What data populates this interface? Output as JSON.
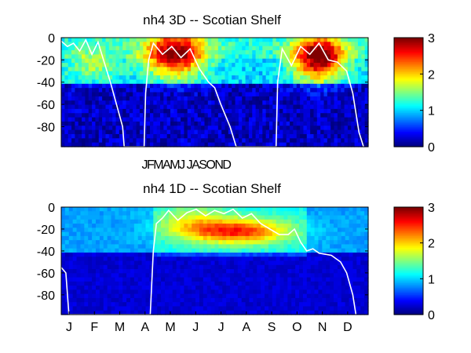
{
  "chart_data": [
    {
      "type": "heatmap",
      "title": "nh4 3D   -- Scotian Shelf",
      "ylim": [
        -98,
        0
      ],
      "y_ticks": [
        "0",
        "-20",
        "-40",
        "-60",
        "-80"
      ],
      "x_tick_labels": [
        "JFMAMJ JASOND"
      ],
      "colorbar": {
        "range": [
          0,
          3
        ],
        "ticks": [
          "0",
          "1",
          "2",
          "3"
        ],
        "colormap": "jet"
      },
      "overlay_line_color": "#ffffff",
      "overlay_depth_profile": [
        [
          0.0,
          -3
        ],
        [
          0.02,
          -8
        ],
        [
          0.04,
          -5
        ],
        [
          0.06,
          -12
        ],
        [
          0.08,
          -2
        ],
        [
          0.1,
          -15
        ],
        [
          0.12,
          -4
        ],
        [
          0.14,
          -22
        ],
        [
          0.16,
          -40
        ],
        [
          0.18,
          -60
        ],
        [
          0.2,
          -80
        ],
        [
          0.205,
          -98
        ],
        [
          0.27,
          -98
        ],
        [
          0.275,
          -50
        ],
        [
          0.285,
          -20
        ],
        [
          0.3,
          -5
        ],
        [
          0.33,
          -15
        ],
        [
          0.36,
          -8
        ],
        [
          0.39,
          -18
        ],
        [
          0.42,
          -10
        ],
        [
          0.45,
          -28
        ],
        [
          0.48,
          -40
        ],
        [
          0.5,
          -45
        ],
        [
          0.52,
          -60
        ],
        [
          0.55,
          -80
        ],
        [
          0.57,
          -98
        ],
        [
          0.7,
          -98
        ],
        [
          0.705,
          -40
        ],
        [
          0.72,
          -10
        ],
        [
          0.75,
          -25
        ],
        [
          0.78,
          -8
        ],
        [
          0.81,
          -15
        ],
        [
          0.84,
          -5
        ],
        [
          0.87,
          -20
        ],
        [
          0.9,
          -22
        ],
        [
          0.93,
          -30
        ],
        [
          0.95,
          -50
        ],
        [
          0.97,
          -85
        ],
        [
          0.985,
          -98
        ]
      ]
    },
    {
      "type": "heatmap",
      "title": "nh4 1D   -- Scotian Shelf",
      "ylim": [
        -98,
        0
      ],
      "y_ticks": [
        "0",
        "-20",
        "-40",
        "-60",
        "-80"
      ],
      "x_ticks": [
        "J",
        "F",
        "M",
        "A",
        "M",
        "J",
        "J",
        "A",
        "S",
        "O",
        "N",
        "D"
      ],
      "colorbar": {
        "range": [
          0,
          3
        ],
        "ticks": [
          "0",
          "1",
          "2",
          "3"
        ],
        "colormap": "jet"
      },
      "overlay_line_color": "#ffffff",
      "overlay_depth_profile": [
        [
          0.0,
          -55
        ],
        [
          0.015,
          -60
        ],
        [
          0.025,
          -98
        ],
        [
          0.29,
          -98
        ],
        [
          0.3,
          -40
        ],
        [
          0.31,
          -15
        ],
        [
          0.33,
          -10
        ],
        [
          0.35,
          -3
        ],
        [
          0.38,
          -12
        ],
        [
          0.41,
          -5
        ],
        [
          0.44,
          -2
        ],
        [
          0.47,
          -8
        ],
        [
          0.5,
          -3
        ],
        [
          0.53,
          -6
        ],
        [
          0.56,
          -2
        ],
        [
          0.59,
          -10
        ],
        [
          0.62,
          -6
        ],
        [
          0.65,
          -15
        ],
        [
          0.68,
          -20
        ],
        [
          0.71,
          -25
        ],
        [
          0.74,
          -25
        ],
        [
          0.76,
          -20
        ],
        [
          0.78,
          -32
        ],
        [
          0.8,
          -40
        ],
        [
          0.82,
          -38
        ],
        [
          0.84,
          -42
        ],
        [
          0.88,
          -44
        ],
        [
          0.91,
          -50
        ],
        [
          0.93,
          -60
        ],
        [
          0.95,
          -80
        ],
        [
          0.96,
          -98
        ]
      ]
    }
  ]
}
